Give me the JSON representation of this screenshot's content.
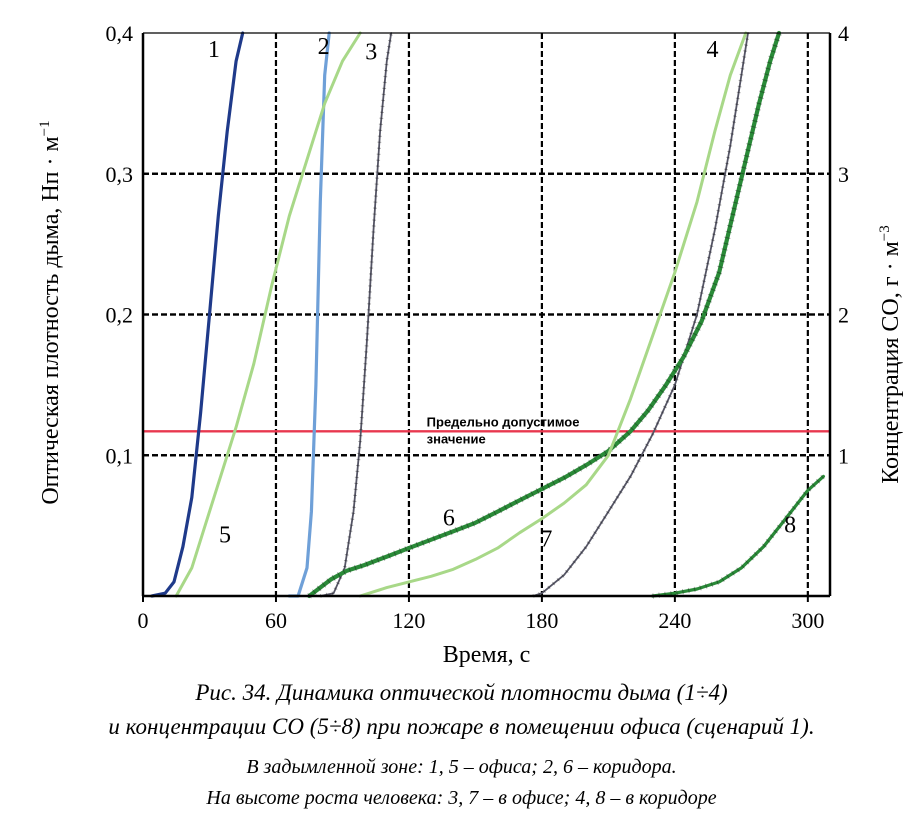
{
  "chart_data": {
    "type": "line",
    "xlabel": "Время, с",
    "ylabel_left": "Оптическая плотность дыма, Нп · м",
    "ylabel_left_sup": "−1",
    "ylabel_right": "Концентрация СО, г · м",
    "ylabel_right_sup": "−3",
    "xlim": [
      0,
      310
    ],
    "ylim_left": [
      0,
      0.4
    ],
    "ylim_right": [
      0,
      4
    ],
    "x_ticks": [
      0,
      60,
      120,
      180,
      240,
      300
    ],
    "x_tick_labels": [
      "0",
      "60",
      "120",
      "180",
      "240",
      "300"
    ],
    "y_left_ticks": [
      0.1,
      0.2,
      0.3,
      0.4
    ],
    "y_left_tick_labels": [
      "0,1",
      "0,2",
      "0,3",
      "0,4"
    ],
    "y_right_ticks": [
      1,
      2,
      3,
      4
    ],
    "y_right_tick_labels": [
      "1",
      "2",
      "3",
      "4"
    ],
    "grid": true,
    "threshold": {
      "value": 0.117,
      "label_line1": "Предельно допустимое",
      "label_line2": "значение",
      "color": "#e8384f"
    },
    "series": [
      {
        "name": "1",
        "color": "#1f3a8a",
        "width": 3.2,
        "points": [
          [
            4,
            0
          ],
          [
            10,
            0.002
          ],
          [
            14,
            0.01
          ],
          [
            18,
            0.035
          ],
          [
            22,
            0.07
          ],
          [
            26,
            0.13
          ],
          [
            30,
            0.2
          ],
          [
            34,
            0.27
          ],
          [
            38,
            0.33
          ],
          [
            42,
            0.38
          ],
          [
            45,
            0.4
          ]
        ],
        "label_at": [
          32,
          0.383
        ]
      },
      {
        "name": "2",
        "color": "#6fa0d8",
        "width": 3.2,
        "points": [
          [
            66,
            0
          ],
          [
            70,
            0
          ],
          [
            74,
            0.02
          ],
          [
            76,
            0.06
          ],
          [
            78,
            0.15
          ],
          [
            80,
            0.28
          ],
          [
            82,
            0.37
          ],
          [
            84,
            0.4
          ]
        ],
        "label_at": [
          81.5,
          0.385
        ]
      },
      {
        "name": "3",
        "color": "#555565",
        "width": 1.8,
        "ticks": true,
        "points": [
          [
            80,
            0
          ],
          [
            86,
            0.002
          ],
          [
            91,
            0.02
          ],
          [
            95,
            0.06
          ],
          [
            98,
            0.11
          ],
          [
            101,
            0.18
          ],
          [
            104,
            0.26
          ],
          [
            107,
            0.33
          ],
          [
            110,
            0.38
          ],
          [
            112,
            0.4
          ]
        ],
        "label_at": [
          103,
          0.381
        ]
      },
      {
        "name": "4",
        "color": "#555565",
        "width": 1.8,
        "ticks": true,
        "points": [
          [
            176,
            0
          ],
          [
            180,
            0.002
          ],
          [
            190,
            0.015
          ],
          [
            200,
            0.035
          ],
          [
            210,
            0.06
          ],
          [
            220,
            0.085
          ],
          [
            230,
            0.115
          ],
          [
            240,
            0.15
          ],
          [
            250,
            0.2
          ],
          [
            258,
            0.26
          ],
          [
            265,
            0.32
          ],
          [
            270,
            0.37
          ],
          [
            273,
            0.4
          ]
        ],
        "label_at": [
          257,
          0.383
        ]
      },
      {
        "name": "5",
        "color": "#a8d888",
        "width": 3.0,
        "points": [
          [
            15,
            0
          ],
          [
            22,
            0.02
          ],
          [
            28,
            0.05
          ],
          [
            35,
            0.085
          ],
          [
            42,
            0.12
          ],
          [
            50,
            0.165
          ],
          [
            58,
            0.22
          ],
          [
            66,
            0.27
          ],
          [
            74,
            0.31
          ],
          [
            82,
            0.35
          ],
          [
            90,
            0.38
          ],
          [
            98,
            0.4
          ]
        ],
        "label_at": [
          37,
          0.038
        ]
      },
      {
        "name": "6",
        "color": "#2a8a38",
        "width": 4.2,
        "ticks": true,
        "points": [
          [
            75,
            0
          ],
          [
            85,
            0.012
          ],
          [
            92,
            0.018
          ],
          [
            100,
            0.022
          ],
          [
            110,
            0.028
          ],
          [
            120,
            0.034
          ],
          [
            130,
            0.04
          ],
          [
            140,
            0.046
          ],
          [
            150,
            0.052
          ],
          [
            160,
            0.06
          ],
          [
            170,
            0.068
          ],
          [
            180,
            0.076
          ],
          [
            190,
            0.084
          ],
          [
            200,
            0.093
          ],
          [
            210,
            0.103
          ],
          [
            220,
            0.117
          ],
          [
            228,
            0.132
          ],
          [
            236,
            0.15
          ],
          [
            244,
            0.17
          ],
          [
            252,
            0.195
          ],
          [
            260,
            0.23
          ],
          [
            266,
            0.27
          ],
          [
            272,
            0.31
          ],
          [
            278,
            0.35
          ],
          [
            283,
            0.38
          ],
          [
            287,
            0.4
          ]
        ],
        "label_at": [
          138,
          0.05
        ]
      },
      {
        "name": "7",
        "color": "#a8d888",
        "width": 3.0,
        "points": [
          [
            98,
            0
          ],
          [
            110,
            0.006
          ],
          [
            120,
            0.01
          ],
          [
            130,
            0.014
          ],
          [
            140,
            0.019
          ],
          [
            150,
            0.026
          ],
          [
            160,
            0.034
          ],
          [
            170,
            0.045
          ],
          [
            180,
            0.055
          ],
          [
            190,
            0.066
          ],
          [
            200,
            0.079
          ],
          [
            210,
            0.1
          ],
          [
            215,
            0.12
          ],
          [
            220,
            0.14
          ],
          [
            230,
            0.185
          ],
          [
            240,
            0.23
          ],
          [
            250,
            0.28
          ],
          [
            258,
            0.33
          ],
          [
            265,
            0.37
          ],
          [
            272,
            0.4
          ]
        ],
        "label_at": [
          182,
          0.035
        ]
      },
      {
        "name": "8",
        "color": "#2a8a38",
        "width": 3.2,
        "ticks": true,
        "points": [
          [
            230,
            0
          ],
          [
            240,
            0.002
          ],
          [
            250,
            0.005
          ],
          [
            260,
            0.01
          ],
          [
            270,
            0.02
          ],
          [
            280,
            0.035
          ],
          [
            290,
            0.055
          ],
          [
            300,
            0.075
          ],
          [
            307,
            0.085
          ]
        ],
        "label_at": [
          292,
          0.045
        ]
      }
    ]
  },
  "caption": {
    "title": "Рис. 34. Динамика оптической плотности дыма (1÷4)",
    "line2": "и концентрации СО (5÷8) при пожаре в помещении офиса (сценарий 1).",
    "line3": "В задымленной зоне: 1, 5 – офиса; 2, 6 – коридора.",
    "line4": "На высоте роста человека: 3, 7 – в офисе; 4, 8 – в коридоре"
  }
}
